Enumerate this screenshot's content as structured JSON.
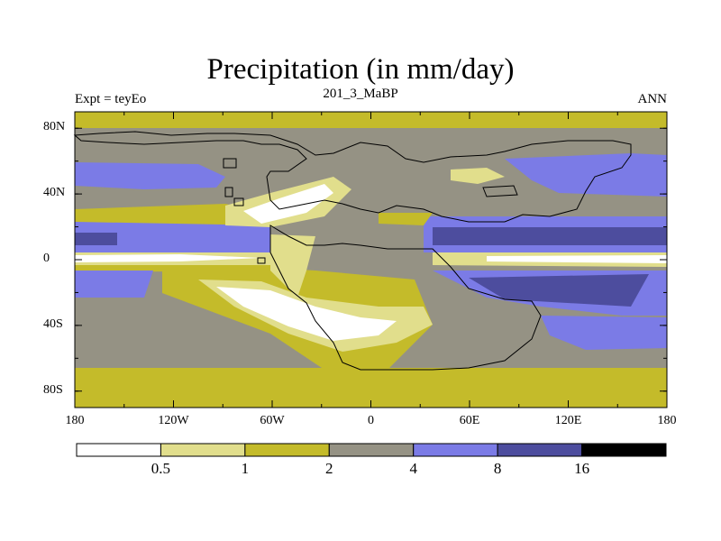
{
  "title": "Precipitation (in mm/day)",
  "experiment_label": "Expt = teyEo",
  "subtitle": "201_3_MaBP",
  "season": "ANN",
  "map": {
    "projection": "cylindrical equidistant",
    "lon_range": [
      -180,
      180
    ],
    "lat_range": [
      -90,
      90
    ],
    "y_ticks": [
      {
        "lat": 80,
        "label": "80N"
      },
      {
        "lat": 40,
        "label": "40N"
      },
      {
        "lat": 0,
        "label": "0"
      },
      {
        "lat": -40,
        "label": "40S"
      },
      {
        "lat": -80,
        "label": "80S"
      }
    ],
    "x_ticks": [
      {
        "lon": -180,
        "label": "180"
      },
      {
        "lon": -120,
        "label": "120W"
      },
      {
        "lon": -60,
        "label": "60W"
      },
      {
        "lon": 0,
        "label": "0"
      },
      {
        "lon": 60,
        "label": "60E"
      },
      {
        "lon": 120,
        "label": "120E"
      },
      {
        "lon": 180,
        "label": "180"
      }
    ]
  },
  "colorbar": {
    "colors": [
      "#ffffff",
      "#e1de8c",
      "#c4bb2a",
      "#959284",
      "#7b7be6",
      "#4d4d9e",
      "#000000"
    ],
    "boundaries": [
      "0.5",
      "1",
      "2",
      "4",
      "8",
      "16"
    ]
  }
}
